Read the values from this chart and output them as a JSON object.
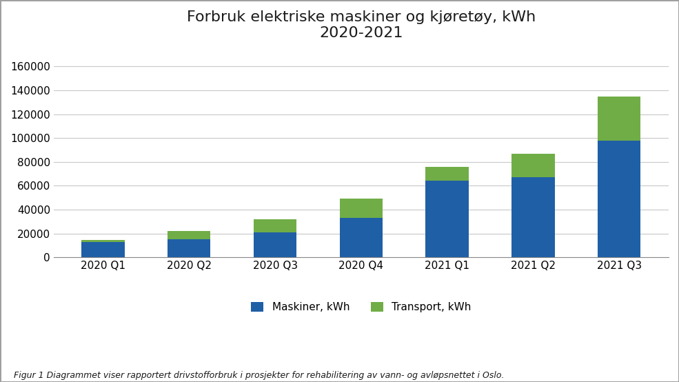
{
  "title": "Forbruk elektriske maskiner og kjøretøy, kWh\n2020-2021",
  "categories": [
    "2020 Q1",
    "2020 Q2",
    "2020 Q3",
    "2020 Q4",
    "2021 Q1",
    "2021 Q2",
    "2021 Q3"
  ],
  "maskiner": [
    13000,
    15000,
    21000,
    33000,
    64000,
    67000,
    98000
  ],
  "transport": [
    1500,
    7000,
    11000,
    16000,
    12000,
    20000,
    37000
  ],
  "maskiner_color": "#1F5FA6",
  "transport_color": "#70AD47",
  "background_color": "#FFFFFF",
  "ylim": [
    0,
    170000
  ],
  "yticks": [
    0,
    20000,
    40000,
    60000,
    80000,
    100000,
    120000,
    140000,
    160000
  ],
  "legend_labels": [
    "Maskiner, kWh",
    "Transport, kWh"
  ],
  "caption": "Figur 1 Diagrammet viser rapportert drivstofforbruk i prosjekter for rehabilitering av vann- og avløpsnettet i Oslo.",
  "title_fontsize": 16,
  "tick_fontsize": 11,
  "legend_fontsize": 11,
  "caption_fontsize": 9,
  "bar_width": 0.5,
  "grid_color": "#C8C8C8",
  "border_color": "#A0A0A0"
}
